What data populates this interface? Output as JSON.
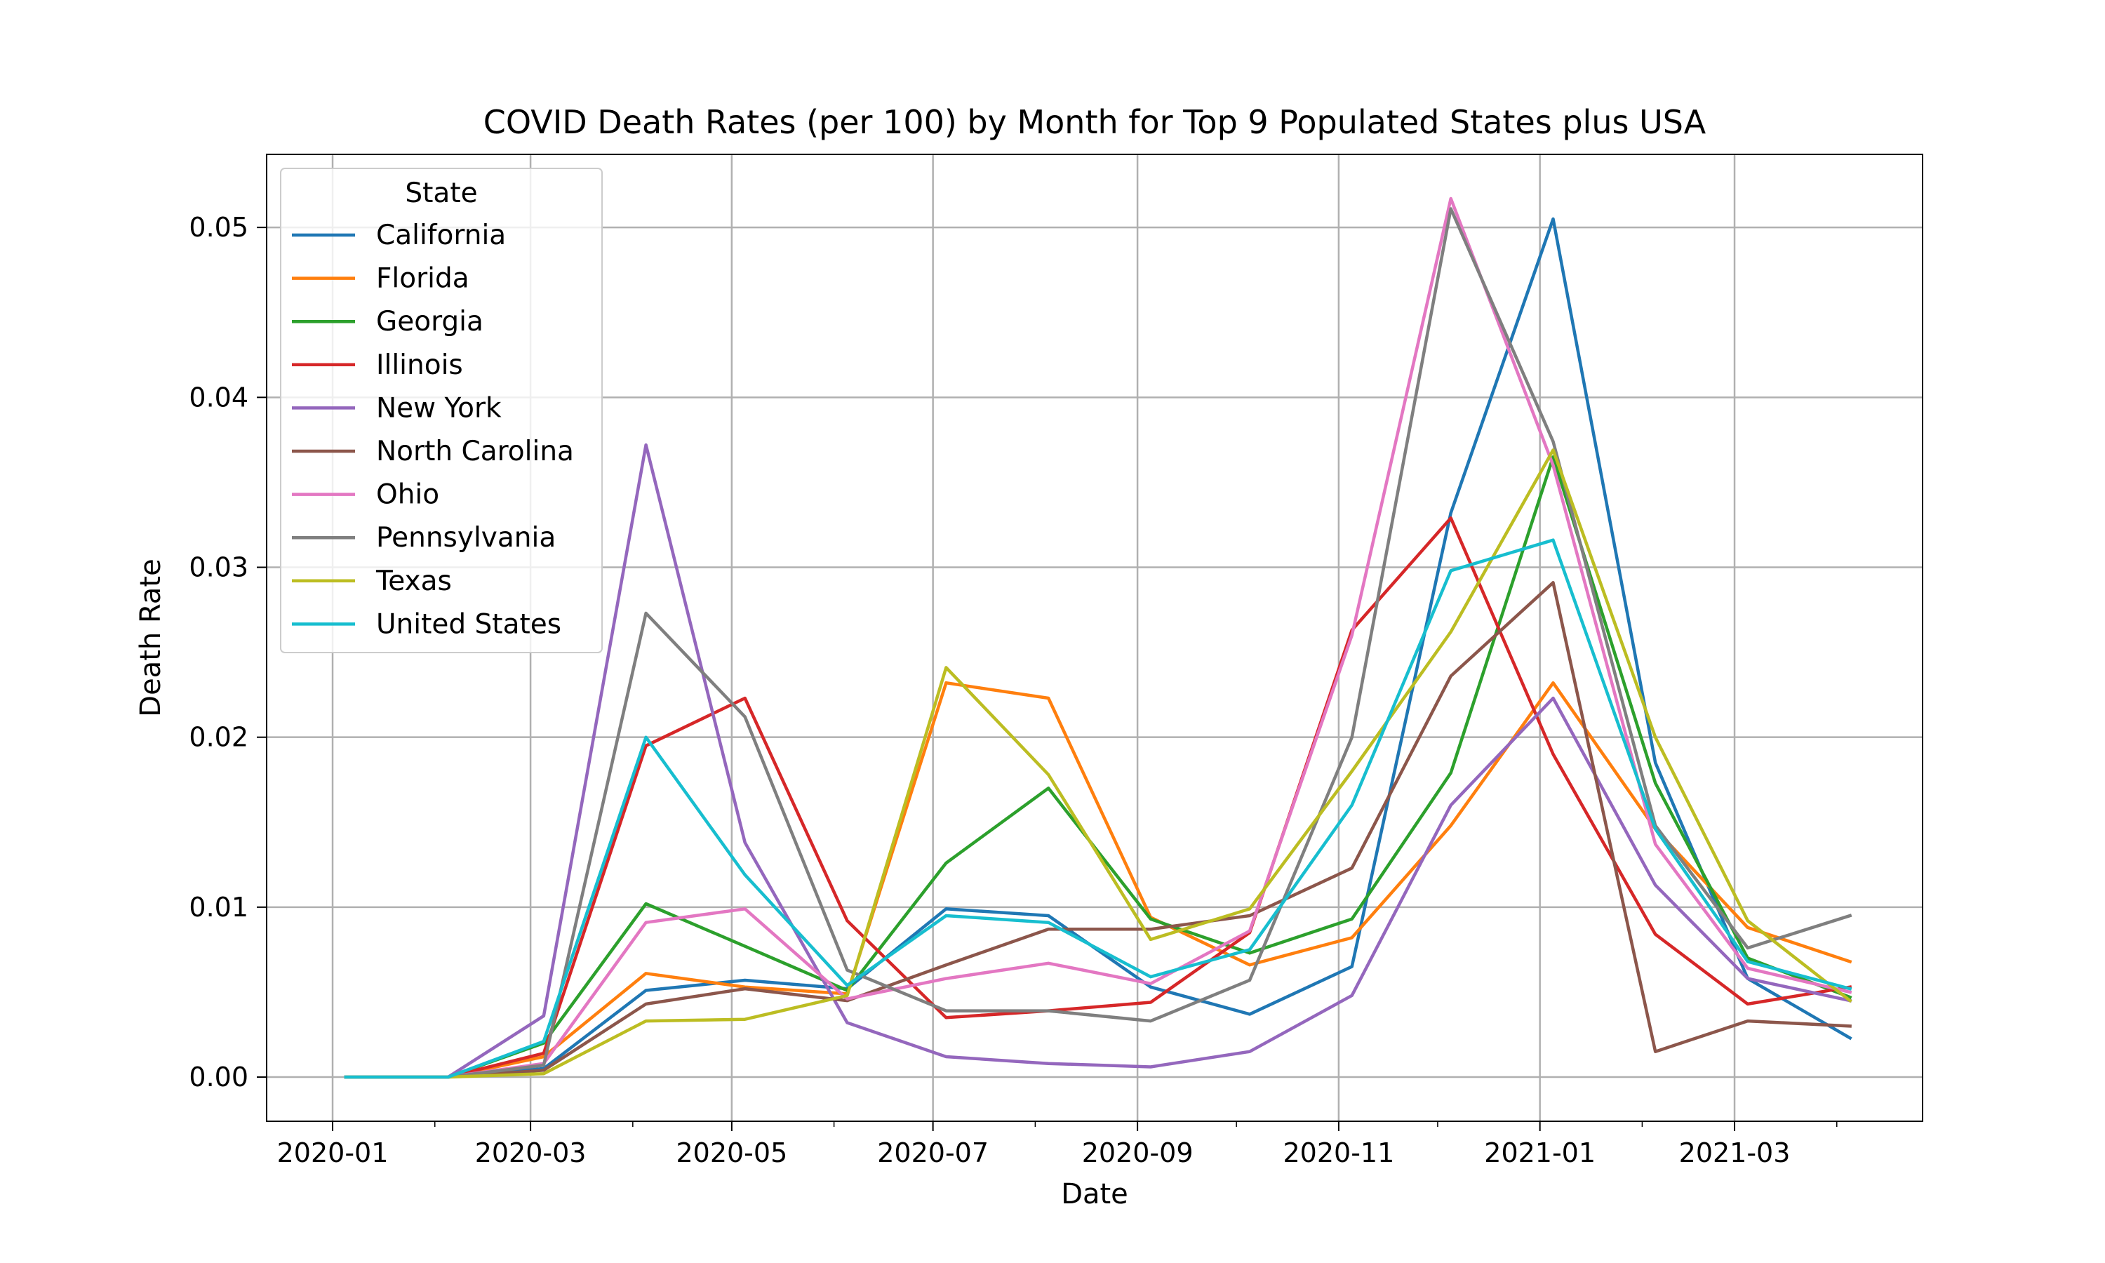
{
  "chart_data": {
    "type": "line",
    "title": "COVID Death Rates (per 100) by Month for Top 9 Populated States plus USA",
    "xlabel": "Date",
    "ylabel": "Death Rate",
    "ylim": [
      -0.0026,
      0.0543
    ],
    "xlim": [
      "2019-12-12",
      "2021-04-27"
    ],
    "grid": true,
    "legend": {
      "title": "State",
      "placement": "top-left"
    },
    "x_ticks": [
      "2020-01",
      "2020-03",
      "2020-05",
      "2020-07",
      "2020-09",
      "2020-11",
      "2021-01",
      "2021-03"
    ],
    "y_ticks": [
      "0.00",
      "0.01",
      "0.02",
      "0.03",
      "0.04",
      "0.05"
    ],
    "x": [
      "2020-01-05",
      "2020-02-05",
      "2020-03-05",
      "2020-04-05",
      "2020-05-05",
      "2020-06-05",
      "2020-07-05",
      "2020-08-05",
      "2020-09-05",
      "2020-10-05",
      "2020-11-05",
      "2020-12-05",
      "2021-01-05",
      "2021-02-05",
      "2021-03-05",
      "2021-04-05"
    ],
    "series": [
      {
        "name": "California",
        "color": "#1f77b4",
        "values": [
          0,
          0,
          0.0005,
          0.0051,
          0.0057,
          0.0052,
          0.0099,
          0.0095,
          0.0053,
          0.0037,
          0.0065,
          0.0332,
          0.0505,
          0.0185,
          0.0058,
          0.0023
        ]
      },
      {
        "name": "Florida",
        "color": "#ff7f0e",
        "values": [
          0,
          0,
          0.0012,
          0.0061,
          0.0053,
          0.0049,
          0.0232,
          0.0223,
          0.0094,
          0.0066,
          0.0082,
          0.0148,
          0.0232,
          0.0146,
          0.0088,
          0.0068
        ]
      },
      {
        "name": "Georgia",
        "color": "#2ca02c",
        "values": [
          0,
          0,
          0.002,
          0.0102,
          0.0077,
          0.0051,
          0.0126,
          0.017,
          0.0093,
          0.0073,
          0.0093,
          0.0179,
          0.0365,
          0.0173,
          0.007,
          0.0047
        ]
      },
      {
        "name": "Illinois",
        "color": "#d62728",
        "values": [
          0,
          0,
          0.0014,
          0.0195,
          0.0223,
          0.0092,
          0.0035,
          0.0039,
          0.0044,
          0.0085,
          0.0263,
          0.0329,
          0.019,
          0.0084,
          0.0043,
          0.0053
        ]
      },
      {
        "name": "New York",
        "color": "#9467bd",
        "values": [
          0,
          0,
          0.0036,
          0.0372,
          0.0138,
          0.0032,
          0.0012,
          0.0008,
          0.0006,
          0.0015,
          0.0048,
          0.016,
          0.0223,
          0.0113,
          0.0058,
          0.0045
        ]
      },
      {
        "name": "North Carolina",
        "color": "#8c564b",
        "values": [
          0,
          0,
          0.0004,
          0.0043,
          0.0052,
          0.0045,
          0.0066,
          0.0087,
          0.0087,
          0.0095,
          0.0123,
          0.0236,
          0.0291,
          0.0015,
          0.0033,
          0.003
        ]
      },
      {
        "name": "Ohio",
        "color": "#e377c2",
        "values": [
          0,
          0,
          0.0008,
          0.0091,
          0.0099,
          0.0046,
          0.0058,
          0.0067,
          0.0055,
          0.0086,
          0.026,
          0.0517,
          0.036,
          0.0137,
          0.0064,
          0.005
        ]
      },
      {
        "name": "Pennsylvania",
        "color": "#7f7f7f",
        "values": [
          0,
          0,
          0.0007,
          0.0273,
          0.0212,
          0.0063,
          0.0039,
          0.0039,
          0.0033,
          0.0057,
          0.02,
          0.0511,
          0.0374,
          0.0148,
          0.0076,
          0.0095
        ]
      },
      {
        "name": "Texas",
        "color": "#bcbd22",
        "values": [
          0,
          0,
          0.0002,
          0.0033,
          0.0034,
          0.0048,
          0.0241,
          0.0178,
          0.0081,
          0.0099,
          0.018,
          0.0262,
          0.0369,
          0.02,
          0.0092,
          0.0045
        ]
      },
      {
        "name": "United States",
        "color": "#17becf",
        "values": [
          0,
          0,
          0.0021,
          0.02,
          0.0119,
          0.0054,
          0.0095,
          0.0091,
          0.0059,
          0.0075,
          0.016,
          0.0298,
          0.0316,
          0.0146,
          0.0068,
          0.0052
        ]
      }
    ]
  }
}
